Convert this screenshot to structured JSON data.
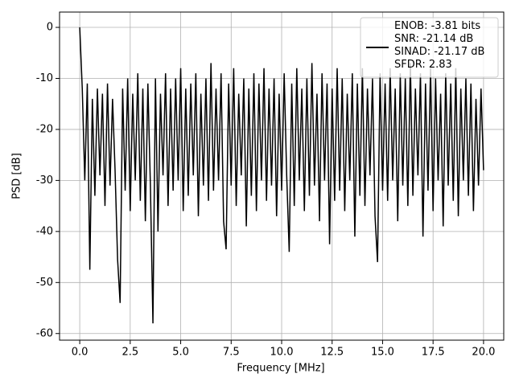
{
  "chart_data": {
    "type": "line",
    "xlabel": "Frequency [MHz]",
    "ylabel": "PSD [dB]",
    "xlim": [
      -1,
      21
    ],
    "ylim": [
      -61.3,
      3
    ],
    "xticks": [
      {
        "value": 0,
        "label": "0.0"
      },
      {
        "value": 2.5,
        "label": "2.5"
      },
      {
        "value": 5,
        "label": "5.0"
      },
      {
        "value": 7.5,
        "label": "7.5"
      },
      {
        "value": 10,
        "label": "10.0"
      },
      {
        "value": 12.5,
        "label": "12.5"
      },
      {
        "value": 15,
        "label": "15.0"
      },
      {
        "value": 17.5,
        "label": "17.5"
      },
      {
        "value": 20,
        "label": "20.0"
      }
    ],
    "yticks": [
      0,
      -10,
      -20,
      -30,
      -40,
      -50,
      -60
    ],
    "grid": true,
    "legend": "upper right",
    "x": [
      0,
      0.125,
      0.25,
      0.375,
      0.5,
      0.625,
      0.75,
      0.875,
      1,
      1.125,
      1.25,
      1.375,
      1.5,
      1.625,
      1.75,
      1.875,
      2,
      2.125,
      2.25,
      2.375,
      2.5,
      2.625,
      2.75,
      2.875,
      3,
      3.125,
      3.25,
      3.375,
      3.5,
      3.625,
      3.75,
      3.875,
      4,
      4.125,
      4.25,
      4.375,
      4.5,
      4.625,
      4.75,
      4.875,
      5,
      5.125,
      5.25,
      5.375,
      5.5,
      5.625,
      5.75,
      5.875,
      6,
      6.125,
      6.25,
      6.375,
      6.5,
      6.625,
      6.75,
      6.875,
      7,
      7.125,
      7.25,
      7.375,
      7.5,
      7.625,
      7.75,
      7.875,
      8,
      8.125,
      8.25,
      8.375,
      8.5,
      8.625,
      8.75,
      8.875,
      9,
      9.125,
      9.25,
      9.375,
      9.5,
      9.625,
      9.75,
      9.875,
      10,
      10.125,
      10.25,
      10.375,
      10.5,
      10.625,
      10.75,
      10.875,
      11,
      11.125,
      11.25,
      11.375,
      11.5,
      11.625,
      11.75,
      11.875,
      12,
      12.125,
      12.25,
      12.375,
      12.5,
      12.625,
      12.75,
      12.875,
      13,
      13.125,
      13.25,
      13.375,
      13.5,
      13.625,
      13.75,
      13.875,
      14,
      14.125,
      14.25,
      14.375,
      14.5,
      14.625,
      14.75,
      14.875,
      15,
      15.125,
      15.25,
      15.375,
      15.5,
      15.625,
      15.75,
      15.875,
      16,
      16.125,
      16.25,
      16.375,
      16.5,
      16.625,
      16.75,
      16.875,
      17,
      17.125,
      17.25,
      17.375,
      17.5,
      17.625,
      17.75,
      17.875,
      18,
      18.125,
      18.25,
      18.375,
      18.5,
      18.625,
      18.75,
      18.875,
      19,
      19.125,
      19.25,
      19.375,
      19.5,
      19.625,
      19.75,
      19.875,
      20
    ],
    "series": [
      {
        "name": "ENOB: -3.81 bits\nSNR: -21.14 dB\nSINAD: -21.17 dB\nSFDR: 2.83",
        "color": "#000000",
        "values": [
          0,
          -12,
          -30,
          -11,
          -47.5,
          -14,
          -33,
          -12,
          -29,
          -13,
          -35,
          -11,
          -31,
          -14,
          -28,
          -45.5,
          -54,
          -12,
          -32,
          -10,
          -36,
          -13,
          -30,
          -9,
          -34,
          -12,
          -38,
          -11,
          -31,
          -58,
          -10,
          -40,
          -13,
          -29,
          -9,
          -35,
          -12,
          -32,
          -10,
          -30,
          -8,
          -36,
          -12,
          -33,
          -11,
          -29,
          -9,
          -37,
          -13,
          -31,
          -10,
          -34,
          -7,
          -32,
          -12,
          -30,
          -9,
          -38,
          -43.5,
          -11,
          -31,
          -8,
          -35,
          -13,
          -29,
          -10,
          -39,
          -12,
          -33,
          -9,
          -36,
          -11,
          -30,
          -8,
          -34,
          -12,
          -31,
          -10,
          -37,
          -13,
          -32,
          -9,
          -29,
          -44,
          -11,
          -35,
          -8,
          -30,
          -12,
          -36,
          -10,
          -33,
          -7,
          -31,
          -13,
          -38,
          -9,
          -30,
          -11,
          -42.5,
          -12,
          -34,
          -8,
          -32,
          -10,
          -36,
          -13,
          -30,
          -9,
          -41,
          -11,
          -33,
          -8,
          -35,
          -12,
          -29,
          -10,
          -37,
          -46,
          -9,
          -32,
          -11,
          -34,
          -8,
          -30,
          -12,
          -38,
          -9,
          -31,
          -10,
          -35,
          -7,
          -33,
          -12,
          -29,
          -9,
          -41,
          -11,
          -32,
          -8,
          -36,
          -10,
          -30,
          -13,
          -39,
          -9,
          -31,
          -11,
          -34,
          -8,
          -37,
          -12,
          -30,
          -10,
          -33,
          -11,
          -36,
          -14,
          -31,
          -12,
          -28
        ]
      }
    ]
  }
}
